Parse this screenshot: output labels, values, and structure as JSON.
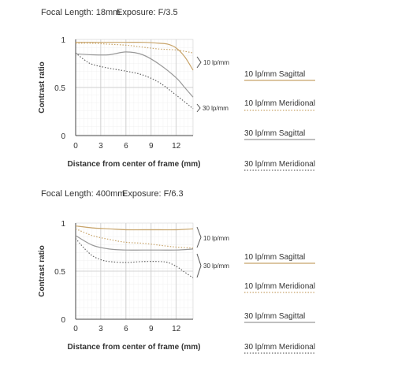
{
  "charts": [
    {
      "heading_focal": "Focal Length: 18mm",
      "heading_exposure": "Exposure: F/3.5",
      "bracket_10": "10 lp/mm",
      "bracket_30": "30 lp/mm"
    },
    {
      "heading_focal": "Focal Length: 400mm",
      "heading_exposure": "Exposure: F/6.3",
      "bracket_10": "10 lp/mm",
      "bracket_30": "30 lp/mm"
    }
  ],
  "chart_data": [
    {
      "type": "line",
      "xlabel": "Distance from center of frame (mm)",
      "ylabel": "Contrast ratio",
      "xlim": [
        0,
        14
      ],
      "ylim": [
        0,
        1
      ],
      "xticks": [
        "0",
        "3",
        "6",
        "9",
        "12"
      ],
      "yticks": [
        "0",
        "0.5",
        "1"
      ],
      "grid": true,
      "legend_position": "right",
      "series": [
        {
          "name": "10 lp/mm Sagittal",
          "color": "#c8a46a",
          "style": "solid",
          "x": [
            0,
            2,
            4,
            6,
            8,
            10,
            11,
            12,
            13,
            14
          ],
          "y": [
            0.97,
            0.97,
            0.97,
            0.97,
            0.97,
            0.96,
            0.95,
            0.91,
            0.82,
            0.68
          ]
        },
        {
          "name": "10 lp/mm Meridional",
          "color": "#c8a46a",
          "style": "dotted",
          "x": [
            0,
            2,
            4,
            6,
            8,
            10,
            12,
            14
          ],
          "y": [
            0.96,
            0.96,
            0.95,
            0.94,
            0.92,
            0.9,
            0.89,
            0.86
          ]
        },
        {
          "name": "30 lp/mm Sagittal",
          "color": "#999999",
          "style": "solid",
          "x": [
            0,
            2,
            4,
            6,
            8,
            10,
            12,
            13,
            14
          ],
          "y": [
            0.85,
            0.84,
            0.84,
            0.87,
            0.84,
            0.74,
            0.6,
            0.5,
            0.4
          ]
        },
        {
          "name": "30 lp/mm Meridional",
          "color": "#666666",
          "style": "dotted",
          "x": [
            0,
            1,
            2,
            4,
            6,
            8,
            10,
            12,
            14
          ],
          "y": [
            0.86,
            0.79,
            0.74,
            0.7,
            0.67,
            0.63,
            0.55,
            0.42,
            0.28
          ]
        }
      ]
    },
    {
      "type": "line",
      "xlabel": "Distance from center of frame (mm)",
      "ylabel": "Contrast ratio",
      "xlim": [
        0,
        14
      ],
      "ylim": [
        0,
        1
      ],
      "xticks": [
        "0",
        "3",
        "6",
        "9",
        "12"
      ],
      "yticks": [
        "0",
        "0.5",
        "1"
      ],
      "grid": true,
      "legend_position": "right",
      "series": [
        {
          "name": "10 lp/mm Sagittal",
          "color": "#c8a46a",
          "style": "solid",
          "x": [
            0,
            2,
            4,
            6,
            8,
            10,
            12,
            14
          ],
          "y": [
            0.97,
            0.95,
            0.94,
            0.93,
            0.93,
            0.93,
            0.93,
            0.94
          ]
        },
        {
          "name": "10 lp/mm Meridional",
          "color": "#c8a46a",
          "style": "dotted",
          "x": [
            0,
            2,
            4,
            6,
            8,
            10,
            12,
            14
          ],
          "y": [
            0.94,
            0.87,
            0.83,
            0.8,
            0.79,
            0.77,
            0.75,
            0.74
          ]
        },
        {
          "name": "30 lp/mm Sagittal",
          "color": "#999999",
          "style": "solid",
          "x": [
            0,
            2,
            4,
            6,
            8,
            10,
            12,
            14
          ],
          "y": [
            0.87,
            0.77,
            0.73,
            0.72,
            0.72,
            0.72,
            0.72,
            0.73
          ]
        },
        {
          "name": "30 lp/mm Meridional",
          "color": "#666666",
          "style": "dotted",
          "x": [
            0,
            1,
            2,
            3,
            4,
            6,
            8,
            10,
            11,
            12,
            13,
            14
          ],
          "y": [
            0.84,
            0.74,
            0.66,
            0.62,
            0.6,
            0.59,
            0.6,
            0.6,
            0.59,
            0.55,
            0.49,
            0.43
          ]
        }
      ]
    }
  ]
}
